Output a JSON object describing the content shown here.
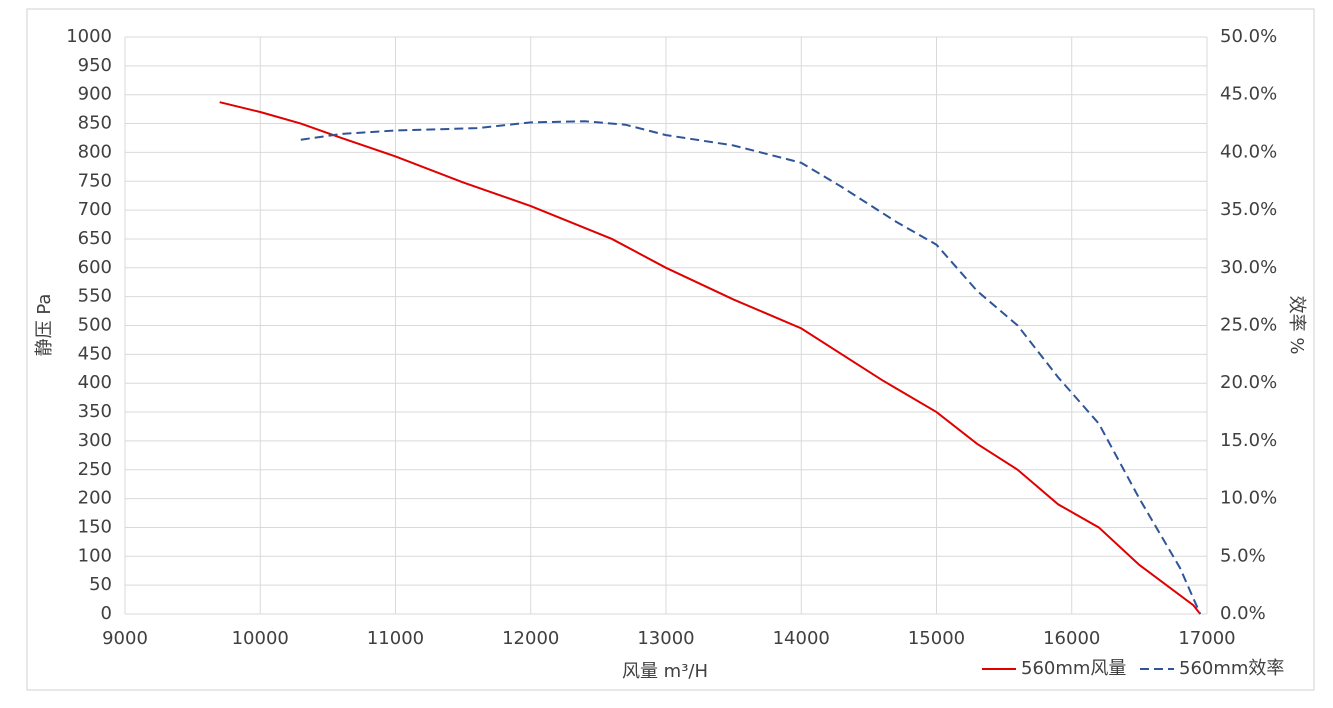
{
  "chart_data": {
    "type": "line",
    "x_label": "风量 m³/H",
    "y_label": "静压  Pa",
    "y2_label": "效率  %",
    "xlim": [
      9000,
      17000
    ],
    "xticks": [
      9000,
      10000,
      11000,
      12000,
      13000,
      14000,
      15000,
      16000,
      17000
    ],
    "ylim": [
      0,
      1000
    ],
    "yticks": [
      0,
      50,
      100,
      150,
      200,
      250,
      300,
      350,
      400,
      450,
      500,
      550,
      600,
      650,
      700,
      750,
      800,
      850,
      900,
      950,
      1000
    ],
    "y2lim": [
      0,
      50
    ],
    "y2ticks": [
      {
        "value": 0,
        "label": "0.0%"
      },
      {
        "value": 5,
        "label": "5.0%"
      },
      {
        "value": 10,
        "label": "10.0%"
      },
      {
        "value": 15,
        "label": "15.0%"
      },
      {
        "value": 20,
        "label": "20.0%"
      },
      {
        "value": 25,
        "label": "25.0%"
      },
      {
        "value": 30,
        "label": "30.0%"
      },
      {
        "value": 35,
        "label": "35.0%"
      },
      {
        "value": 40,
        "label": "40.0%"
      },
      {
        "value": 45,
        "label": "45.0%"
      },
      {
        "value": 50,
        "label": "50.0%"
      }
    ],
    "grid": true,
    "legend": "bottom-right",
    "series": [
      {
        "name": "560mm风量",
        "color": "#e00000",
        "dash": false,
        "x": [
          9700,
          10000,
          10300,
          10600,
          11000,
          11500,
          12000,
          12600,
          13000,
          13500,
          14000,
          14600,
          15000,
          15300,
          15600,
          15900,
          16200,
          16500,
          16900,
          16950
        ],
        "values": [
          887,
          870,
          850,
          825,
          793,
          748,
          707,
          650,
          600,
          545,
          495,
          405,
          350,
          295,
          250,
          190,
          150,
          85,
          15,
          0
        ]
      },
      {
        "name": "560mm效率",
        "color": "#2f5597",
        "dash": true,
        "axis": "y2",
        "x": [
          10300,
          10600,
          11000,
          11600,
          12000,
          12400,
          12700,
          13000,
          13500,
          14000,
          14300,
          14700,
          15000,
          15300,
          15600,
          15900,
          16200,
          16500,
          16800,
          16950
        ],
        "values": [
          41.1,
          41.6,
          41.9,
          42.1,
          42.6,
          42.7,
          42.4,
          41.5,
          40.6,
          39.1,
          37.0,
          34.0,
          32.0,
          28.0,
          25.0,
          20.5,
          16.5,
          10.0,
          4.0,
          0
        ]
      }
    ]
  }
}
